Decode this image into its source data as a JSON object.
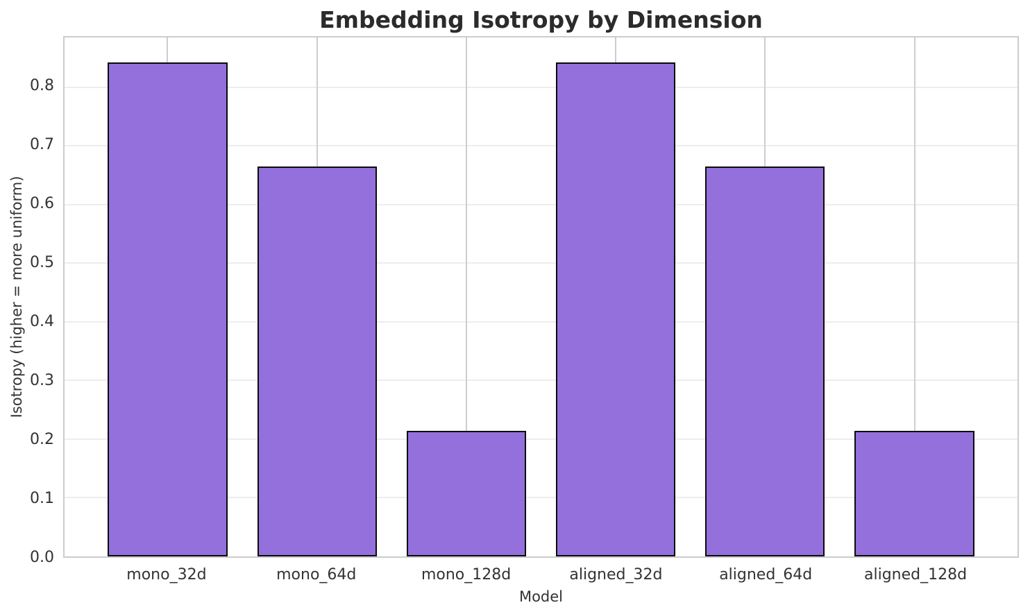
{
  "chart_data": {
    "type": "bar",
    "title": "Embedding Isotropy by Dimension",
    "xlabel": "Model",
    "ylabel": "Isotropy (higher = more uniform)",
    "categories": [
      "mono_32d",
      "mono_64d",
      "mono_128d",
      "aligned_32d",
      "aligned_64d",
      "aligned_128d"
    ],
    "values": [
      0.842,
      0.665,
      0.214,
      0.842,
      0.665,
      0.214
    ],
    "ylim": [
      0,
      0.885
    ],
    "yticks": [
      0.0,
      0.1,
      0.2,
      0.3,
      0.4,
      0.5,
      0.6,
      0.7,
      0.8
    ],
    "grid": true,
    "legend": null,
    "bar_color": "#9370DB",
    "bar_edge_color": "#0a0a0a",
    "grid_h_color": "#ededed",
    "grid_v_color": "#cdcdcd",
    "spine_color": "#cccccc",
    "title_color": "#2b2b2b",
    "label_color": "#333333"
  }
}
